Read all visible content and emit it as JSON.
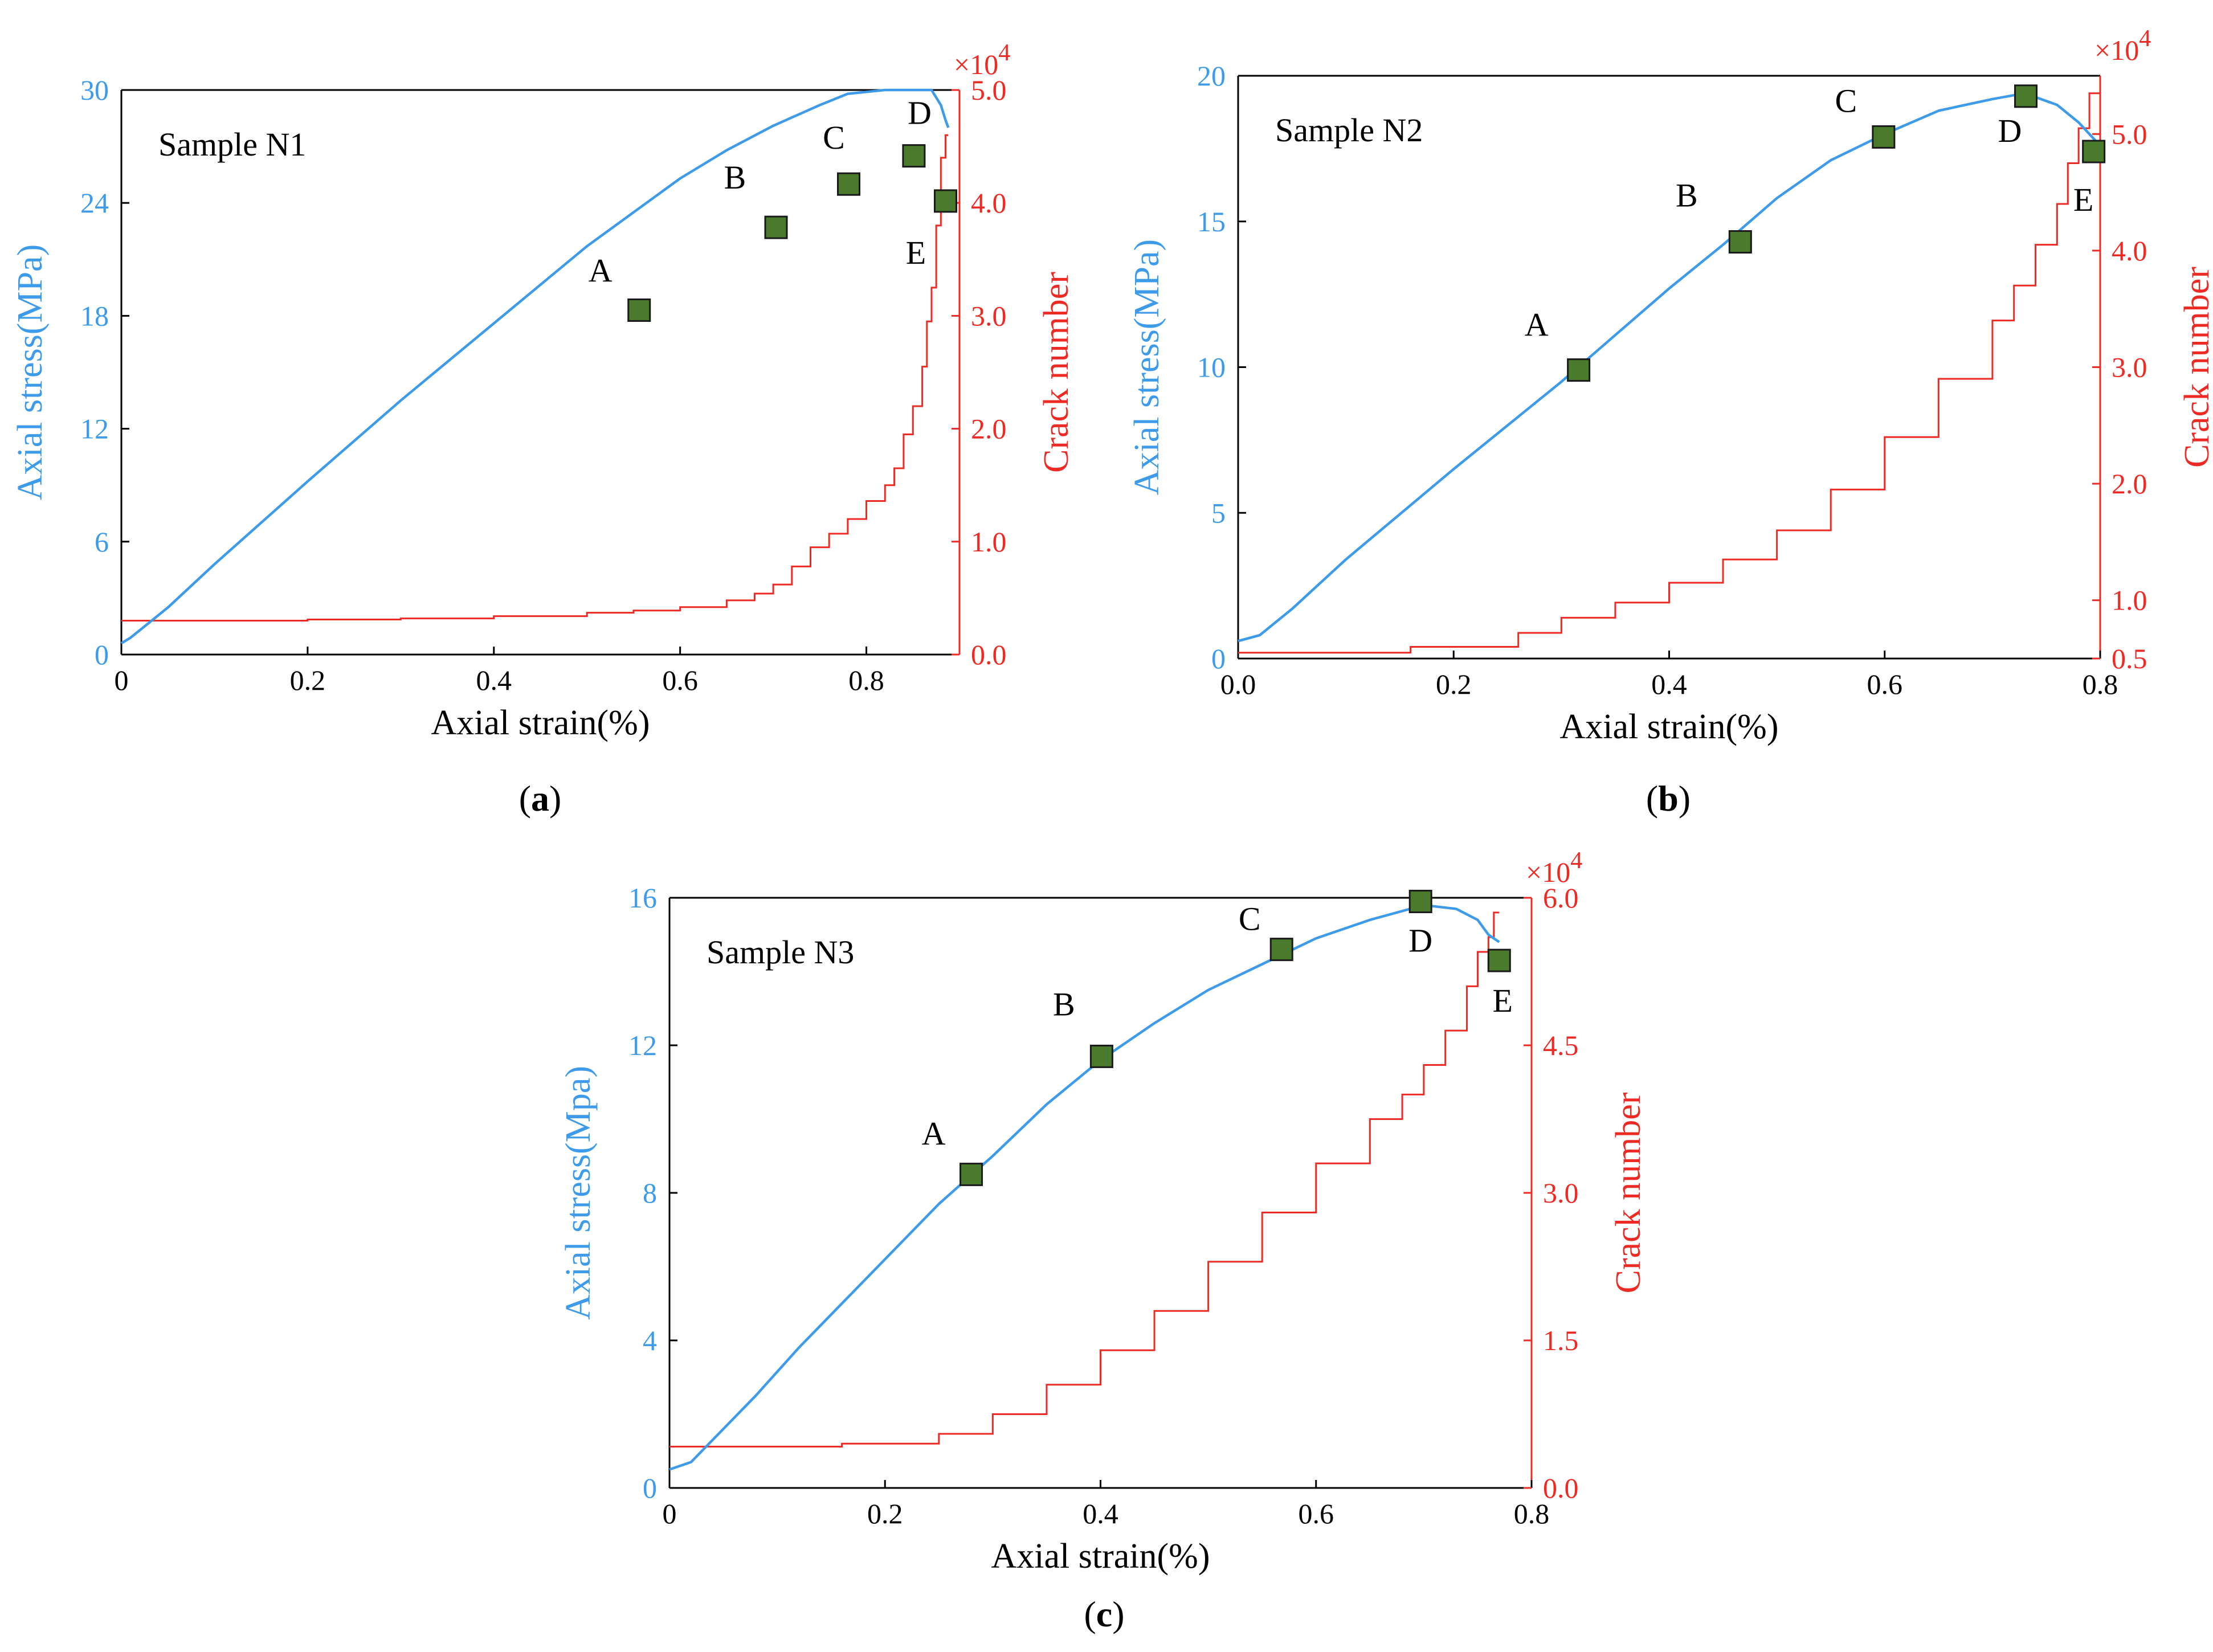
{
  "colors": {
    "stress": "#3d9be9",
    "crack": "#ee2a24",
    "marker_fill": "#4a7a2c",
    "marker_stroke": "#1a1a1a"
  },
  "chart_data": [
    {
      "type": "line",
      "caption_letter": "a",
      "annotation": "Sample N1",
      "xlabel": "Axial strain(%)",
      "ylabel": "Axial stress(MPa)",
      "y2label": "Crack number",
      "y2_multiplier": "×10",
      "y2_exponent": "4",
      "xlim": [
        0,
        0.9
      ],
      "ylim": [
        0,
        30
      ],
      "y2lim": [
        0,
        5.0
      ],
      "xticks": [
        0,
        0.2,
        0.4,
        0.6,
        0.8
      ],
      "xtick_labels": [
        "0",
        "0.2",
        "0.4",
        "0.6",
        "0.8"
      ],
      "yticks": [
        0,
        6,
        12,
        18,
        24,
        30
      ],
      "ytick_labels": [
        "0",
        "6",
        "12",
        "18",
        "24",
        "30"
      ],
      "y2ticks": [
        0,
        1,
        2,
        3,
        4,
        5
      ],
      "y2tick_labels": [
        "0.0",
        "1.0",
        "2.0",
        "3.0",
        "4.0",
        "5.0"
      ],
      "series": [
        {
          "name": "Axial stress",
          "axis": "left",
          "x": [
            0,
            0.01,
            0.05,
            0.1,
            0.2,
            0.3,
            0.4,
            0.5,
            0.55,
            0.6,
            0.65,
            0.7,
            0.75,
            0.78,
            0.82,
            0.85,
            0.87,
            0.88,
            0.885,
            0.888
          ],
          "y": [
            0.6,
            0.9,
            2.5,
            4.8,
            9.2,
            13.5,
            17.6,
            21.7,
            23.5,
            25.3,
            26.8,
            28.1,
            29.2,
            29.8,
            30.5,
            30.9,
            30.1,
            29.2,
            28.4,
            28.0
          ]
        },
        {
          "name": "Crack number",
          "axis": "right",
          "step": true,
          "x": [
            0,
            0.1,
            0.2,
            0.3,
            0.4,
            0.5,
            0.55,
            0.6,
            0.65,
            0.68,
            0.7,
            0.72,
            0.74,
            0.76,
            0.78,
            0.8,
            0.82,
            0.83,
            0.84,
            0.85,
            0.86,
            0.865,
            0.87,
            0.875,
            0.88,
            0.885,
            0.888
          ],
          "y": [
            0.3,
            0.3,
            0.31,
            0.32,
            0.34,
            0.37,
            0.39,
            0.42,
            0.48,
            0.54,
            0.62,
            0.78,
            0.95,
            1.07,
            1.2,
            1.36,
            1.5,
            1.65,
            1.95,
            2.2,
            2.55,
            2.95,
            3.25,
            3.8,
            4.4,
            4.6,
            4.6
          ]
        }
      ],
      "points": [
        {
          "label": "A",
          "x": 0.556,
          "y": 18.3
        },
        {
          "label": "B",
          "x": 0.703,
          "y": 22.7
        },
        {
          "label": "C",
          "x": 0.781,
          "y": 25.0
        },
        {
          "label": "D",
          "x": 0.851,
          "y": 26.5
        },
        {
          "label": "E",
          "x": 0.885,
          "y": 24.1
        }
      ]
    },
    {
      "type": "line",
      "caption_letter": "b",
      "annotation": "Sample N2",
      "xlabel": "Axial strain(%)",
      "ylabel": "Axial stress(MPa)",
      "y2label": "Crack number",
      "y2_multiplier": "×10",
      "y2_exponent": "4",
      "xlim": [
        0,
        0.8
      ],
      "ylim": [
        0,
        20
      ],
      "y2lim": [
        0.5,
        5.5
      ],
      "xticks": [
        0,
        0.2,
        0.4,
        0.6,
        0.8
      ],
      "xtick_labels": [
        "0.0",
        "0.2",
        "0.4",
        "0.6",
        "0.8"
      ],
      "yticks": [
        0,
        5,
        10,
        15,
        20
      ],
      "ytick_labels": [
        "0",
        "5",
        "10",
        "15",
        "20"
      ],
      "y2ticks": [
        0.5,
        1,
        2,
        3,
        4,
        5
      ],
      "y2tick_labels": [
        "0.5",
        "1.0",
        "2.0",
        "3.0",
        "4.0",
        "5.0"
      ],
      "series": [
        {
          "name": "Axial stress",
          "axis": "left",
          "x": [
            0,
            0.02,
            0.05,
            0.1,
            0.2,
            0.3,
            0.35,
            0.4,
            0.45,
            0.5,
            0.55,
            0.6,
            0.65,
            0.7,
            0.73,
            0.76,
            0.78,
            0.79,
            0.8
          ],
          "y": [
            0.6,
            0.8,
            1.7,
            3.4,
            6.5,
            9.5,
            11.1,
            12.7,
            14.2,
            15.8,
            17.1,
            18.0,
            18.8,
            19.2,
            19.4,
            19.0,
            18.4,
            18.0,
            17.6
          ]
        },
        {
          "name": "Crack number",
          "axis": "right",
          "step": true,
          "x": [
            0,
            0.15,
            0.16,
            0.24,
            0.26,
            0.3,
            0.35,
            0.4,
            0.45,
            0.5,
            0.55,
            0.6,
            0.65,
            0.7,
            0.72,
            0.74,
            0.76,
            0.77,
            0.78,
            0.79,
            0.8
          ],
          "y": [
            0.55,
            0.55,
            0.6,
            0.6,
            0.72,
            0.85,
            0.98,
            1.15,
            1.35,
            1.6,
            1.95,
            2.4,
            2.9,
            3.4,
            3.7,
            4.05,
            4.4,
            4.75,
            5.05,
            5.35,
            5.35
          ]
        }
      ],
      "points": [
        {
          "label": "A",
          "x": 0.316,
          "y": 9.9
        },
        {
          "label": "B",
          "x": 0.466,
          "y": 14.3
        },
        {
          "label": "C",
          "x": 0.599,
          "y": 17.9
        },
        {
          "label": "D",
          "x": 0.731,
          "y": 19.3
        },
        {
          "label": "E",
          "x": 0.794,
          "y": 17.4
        }
      ]
    },
    {
      "type": "line",
      "caption_letter": "c",
      "annotation": "Sample N3",
      "xlabel": "Axial strain(%)",
      "ylabel": "Axial stress(Mpa)",
      "y2label": "Crack number",
      "y2_multiplier": "×10",
      "y2_exponent": "4",
      "xlim": [
        0,
        0.8
      ],
      "ylim": [
        0,
        16
      ],
      "y2lim": [
        0,
        6.0
      ],
      "xticks": [
        0,
        0.2,
        0.4,
        0.6,
        0.8
      ],
      "xtick_labels": [
        "0",
        "0.2",
        "0.4",
        "0.6",
        "0.8"
      ],
      "yticks": [
        0,
        4,
        8,
        12,
        16
      ],
      "ytick_labels": [
        "0",
        "4",
        "8",
        "12",
        "16"
      ],
      "y2ticks": [
        0,
        1.5,
        3.0,
        4.5,
        6.0
      ],
      "y2tick_labels": [
        "0.0",
        "1.5",
        "3.0",
        "4.5",
        "6.0"
      ],
      "series": [
        {
          "name": "Axial stress",
          "axis": "left",
          "x": [
            0,
            0.02,
            0.04,
            0.08,
            0.12,
            0.16,
            0.2,
            0.25,
            0.3,
            0.35,
            0.4,
            0.45,
            0.5,
            0.55,
            0.6,
            0.65,
            0.7,
            0.73,
            0.75,
            0.76,
            0.77
          ],
          "y": [
            0.5,
            0.7,
            1.3,
            2.5,
            3.8,
            5.0,
            6.2,
            7.7,
            9.0,
            10.4,
            11.6,
            12.6,
            13.5,
            14.2,
            14.9,
            15.4,
            15.8,
            15.7,
            15.4,
            15.0,
            14.8
          ]
        },
        {
          "name": "Crack number",
          "axis": "right",
          "step": true,
          "x": [
            0,
            0.15,
            0.16,
            0.24,
            0.25,
            0.3,
            0.35,
            0.4,
            0.45,
            0.5,
            0.55,
            0.6,
            0.65,
            0.68,
            0.7,
            0.72,
            0.74,
            0.75,
            0.76,
            0.765,
            0.77
          ],
          "y": [
            0.42,
            0.42,
            0.45,
            0.45,
            0.55,
            0.75,
            1.05,
            1.4,
            1.8,
            2.3,
            2.8,
            3.3,
            3.75,
            4.0,
            4.3,
            4.65,
            5.1,
            5.45,
            5.6,
            5.85,
            5.85
          ]
        }
      ],
      "points": [
        {
          "label": "A",
          "x": 0.28,
          "y": 8.5
        },
        {
          "label": "B",
          "x": 0.401,
          "y": 11.7
        },
        {
          "label": "C",
          "x": 0.568,
          "y": 14.6
        },
        {
          "label": "D",
          "x": 0.697,
          "y": 15.9
        },
        {
          "label": "E",
          "x": 0.77,
          "y": 14.3
        }
      ]
    }
  ]
}
